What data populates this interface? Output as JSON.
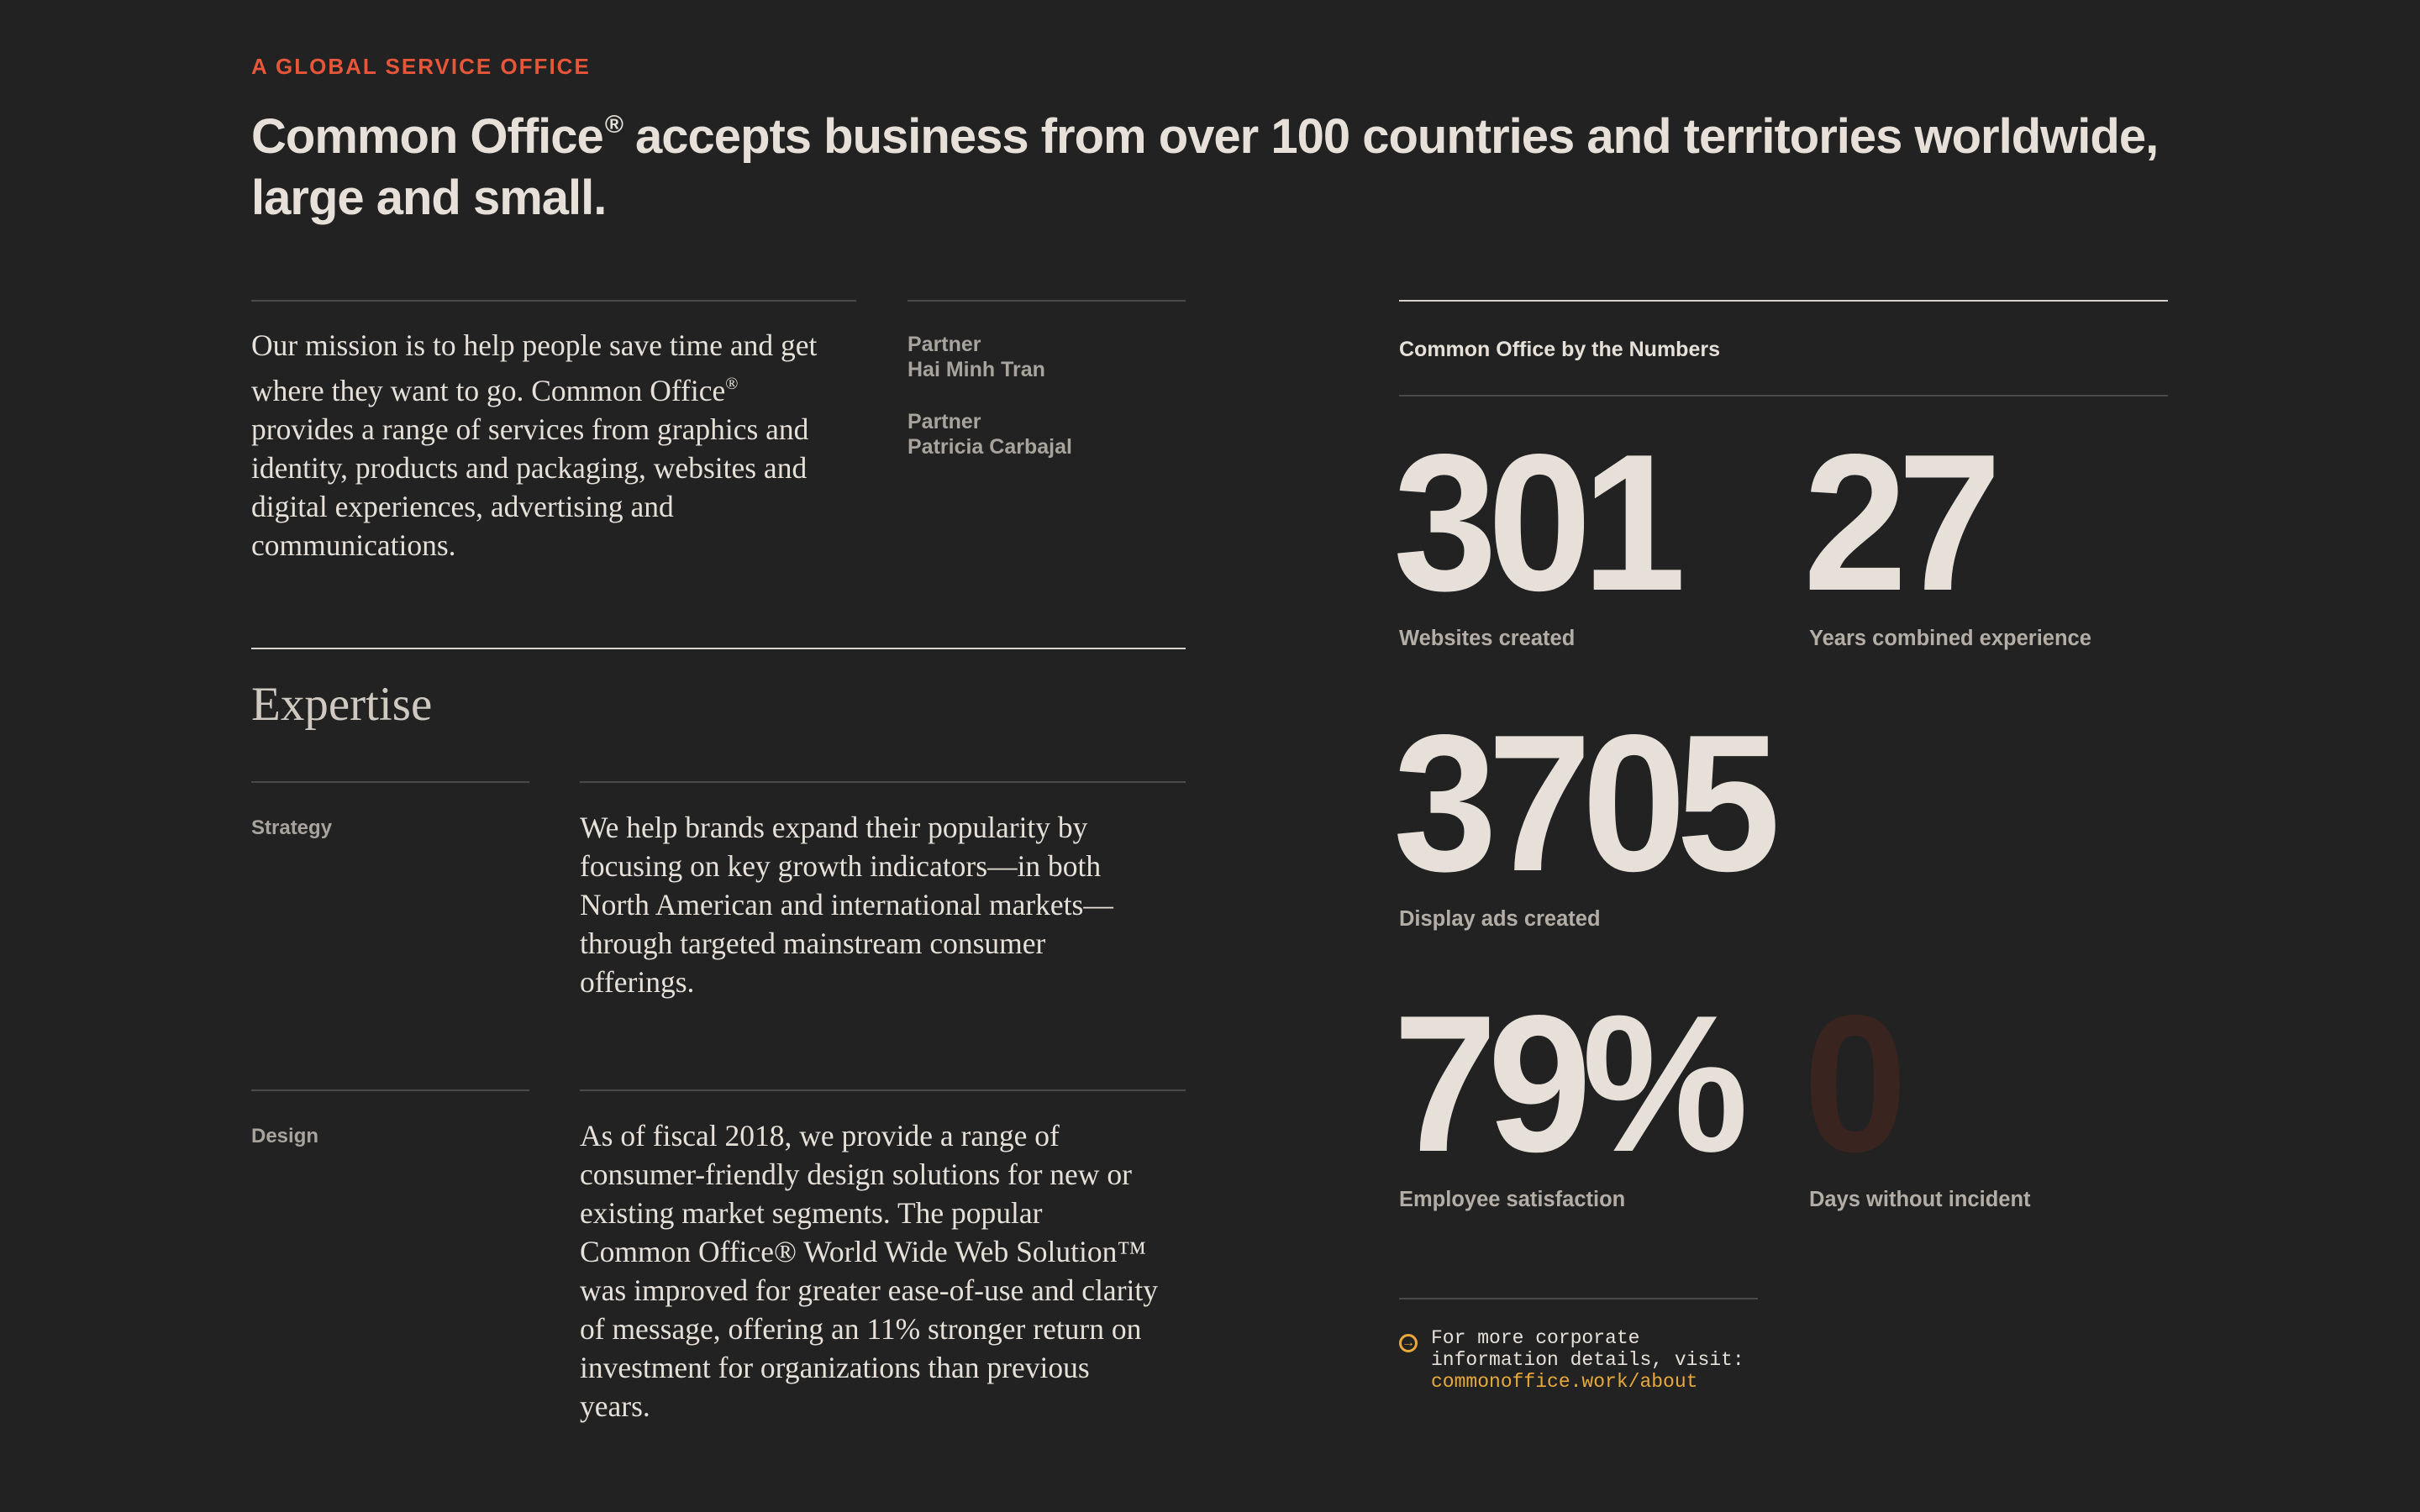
{
  "header": {
    "eyebrow": "A GLOBAL SERVICE OFFICE",
    "headline_brand": "Common Office",
    "headline_mark": "®",
    "headline_line1_rest": " accepts business from over 100 countries and territories worldwide,",
    "headline_line2": "large and small."
  },
  "mission": {
    "line1": "Our mission is to help people save time and get",
    "line2_pre": "where they want to go. Common Office",
    "line2_mark": "®",
    "line3": "provides a range of services from graphics and",
    "line4": "identity, products and packaging, websites and",
    "line5": "digital experiences, advertising and",
    "line6": "communications."
  },
  "partners": [
    {
      "role": "Partner",
      "name": "Hai Minh Tran"
    },
    {
      "role": "Partner",
      "name": "Patricia Carbajal"
    }
  ],
  "expertise": {
    "title": "Expertise",
    "items": [
      {
        "label": "Strategy",
        "lines": [
          "We help brands expand their popularity by",
          "focusing on key growth indicators—in both",
          "North American and international markets—",
          "through targeted mainstream consumer",
          "offerings."
        ]
      },
      {
        "label": "Design",
        "lines": [
          "As of fiscal 2018, we provide a range of",
          "consumer-friendly design solutions for new or",
          "existing market segments. The popular",
          "Common Office® World Wide Web Solution™",
          "was improved for greater ease-of-use and clarity",
          "of message, offering an 11% stronger return on",
          "investment for organizations than previous",
          "years."
        ]
      }
    ]
  },
  "numbers": {
    "title": "Common Office by the Numbers",
    "stats": [
      {
        "value": "301",
        "label": "Websites created"
      },
      {
        "value": "27",
        "label": "Years combined experience"
      },
      {
        "value": "3705",
        "label": "Display ads created"
      },
      {
        "value": "79%",
        "label": "Employee satisfaction"
      },
      {
        "value": "0",
        "label": "Days without incident"
      }
    ]
  },
  "note": {
    "icon": "arrow-circle-icon",
    "line1": "For more corporate",
    "line2": "information details, visit:",
    "link": "commonoffice.work/about"
  },
  "colors": {
    "background": "#222222",
    "accent": "#e8563a",
    "link": "#e8a83a",
    "text": "#e6e0d8"
  }
}
